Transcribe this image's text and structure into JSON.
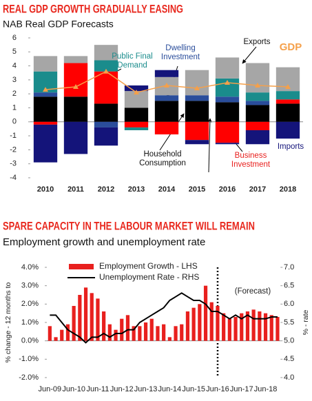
{
  "chart_data": [
    {
      "type": "bar",
      "stacked": true,
      "title": "REAL GDP GROWTH GRADUALLY EASING",
      "subtitle": "NAB Real GDP Forecasts",
      "categories": [
        "2010",
        "2011",
        "2012",
        "2013",
        "2014",
        "2015",
        "2016",
        "2017",
        "2018"
      ],
      "series": [
        {
          "name": "Household Consumption",
          "color": "#000000",
          "values": [
            1.8,
            1.8,
            1.3,
            1.0,
            1.5,
            1.5,
            1.4,
            1.2,
            1.3
          ]
        },
        {
          "name": "Dwelling Investment",
          "color": "#2a4d9b",
          "values": [
            0.3,
            0,
            -0.4,
            0,
            0.4,
            0.4,
            0.4,
            0.3,
            0
          ]
        },
        {
          "name": "Business Investment",
          "color": "#ff0000",
          "values": [
            -0.2,
            2.4,
            2.3,
            -0.4,
            -0.9,
            -1.3,
            -1.5,
            -0.6,
            0.3
          ]
        },
        {
          "name": "Public Final Demand",
          "color": "#1a8c8c",
          "values": [
            1.5,
            0,
            0.8,
            -0.2,
            0,
            0,
            1.3,
            0.6,
            0.6
          ]
        },
        {
          "name": "Exports",
          "color": "#a6a6a6",
          "values": [
            1.1,
            0.5,
            1.1,
            1.2,
            1.3,
            1.8,
            1.5,
            2.1,
            1.7
          ]
        },
        {
          "name": "Imports",
          "color": "#14147a",
          "values": [
            -2.7,
            -2.3,
            -1.3,
            0.4,
            0.5,
            -0.3,
            -0.1,
            -1.0,
            -1.2
          ]
        },
        {
          "name": "GDP",
          "type": "line",
          "marker": "triangle",
          "color": "#f5a04a",
          "values": [
            2.3,
            2.5,
            3.6,
            2.1,
            2.6,
            2.4,
            2.8,
            2.6,
            2.5
          ]
        }
      ],
      "ylim": [
        -4,
        6
      ],
      "yticks": [
        -4,
        -3,
        -2,
        -1,
        0,
        1,
        2,
        3,
        4,
        5,
        6
      ],
      "grid": false
    },
    {
      "type": "bar",
      "stacked": false,
      "title": "SPARE CAPACITY IN THE LABOUR MARKET WILL REMAIN",
      "subtitle": "Employment growth and unemployment rate",
      "categories": [
        "Jun-09",
        null,
        null,
        null,
        "Jun-10",
        null,
        null,
        null,
        "Jun-11",
        null,
        null,
        null,
        "Jun-12",
        null,
        null,
        null,
        "Jun-13",
        null,
        null,
        null,
        "Jun-14",
        null,
        null,
        null,
        "Jun-15",
        null,
        null,
        null,
        "Jun-16",
        null,
        null,
        null,
        "Jun-17",
        null,
        null,
        null,
        "Jun-18",
        null,
        null
      ],
      "series": [
        {
          "name": "Employment Growth - LHS",
          "color": "#e8201e",
          "values": [
            0.8,
            0.2,
            0.6,
            0.9,
            1.9,
            2.5,
            2.9,
            2.6,
            2.3,
            1.6,
            0.9,
            0.6,
            1.2,
            1.4,
            0.8,
            0.8,
            1.0,
            1.2,
            0.8,
            0.9,
            0.2,
            0.8,
            0.9,
            1.6,
            1.8,
            2.0,
            3.0,
            2.1,
            1.9,
            1.5,
            1.2,
            1.3,
            1.5,
            1.6,
            1.7,
            1.6,
            1.5,
            1.4,
            1.3
          ]
        },
        {
          "name": "Unemployment Rate - RHS",
          "type": "line",
          "axis": "y2",
          "color": "#000000",
          "values": [
            5.7,
            5.7,
            5.5,
            5.3,
            5.2,
            5.1,
            4.95,
            5.1,
            5.1,
            5.2,
            5.1,
            5.2,
            5.2,
            5.3,
            5.3,
            5.5,
            5.6,
            5.7,
            5.8,
            5.9,
            6.1,
            6.2,
            6.3,
            6.2,
            6.1,
            6.1,
            6.0,
            5.8,
            5.8,
            5.7,
            5.6,
            5.7,
            5.6,
            5.7,
            5.6,
            5.6,
            5.6,
            5.65,
            5.65
          ]
        }
      ],
      "ylabel": "% change - 12 months to",
      "y2label": "% - rate",
      "ylim": [
        -2,
        4
      ],
      "yticks": [
        {
          "value": -2,
          "label": "-2.0%"
        },
        {
          "value": -1,
          "label": "-1.0%"
        },
        {
          "value": 0,
          "label": "0.0%"
        },
        {
          "value": 1,
          "label": "1.0%"
        },
        {
          "value": 2,
          "label": "2.0%"
        },
        {
          "value": 3,
          "label": "3.0%"
        },
        {
          "value": 4,
          "label": "4.0%"
        }
      ],
      "y2lim": [
        4,
        7
      ],
      "y2ticks": [
        {
          "value": 4,
          "label": "4.0"
        },
        {
          "value": 4.5,
          "label": "4.5"
        },
        {
          "value": 5,
          "label": "5.0"
        },
        {
          "value": 5.5,
          "label": "5.5"
        },
        {
          "value": 6,
          "label": "6.0"
        },
        {
          "value": 6.5,
          "label": "6.5"
        },
        {
          "value": 7,
          "label": "7.0"
        }
      ],
      "annotation": "(Forecast)",
      "legend": "upper left",
      "grid": false
    }
  ]
}
